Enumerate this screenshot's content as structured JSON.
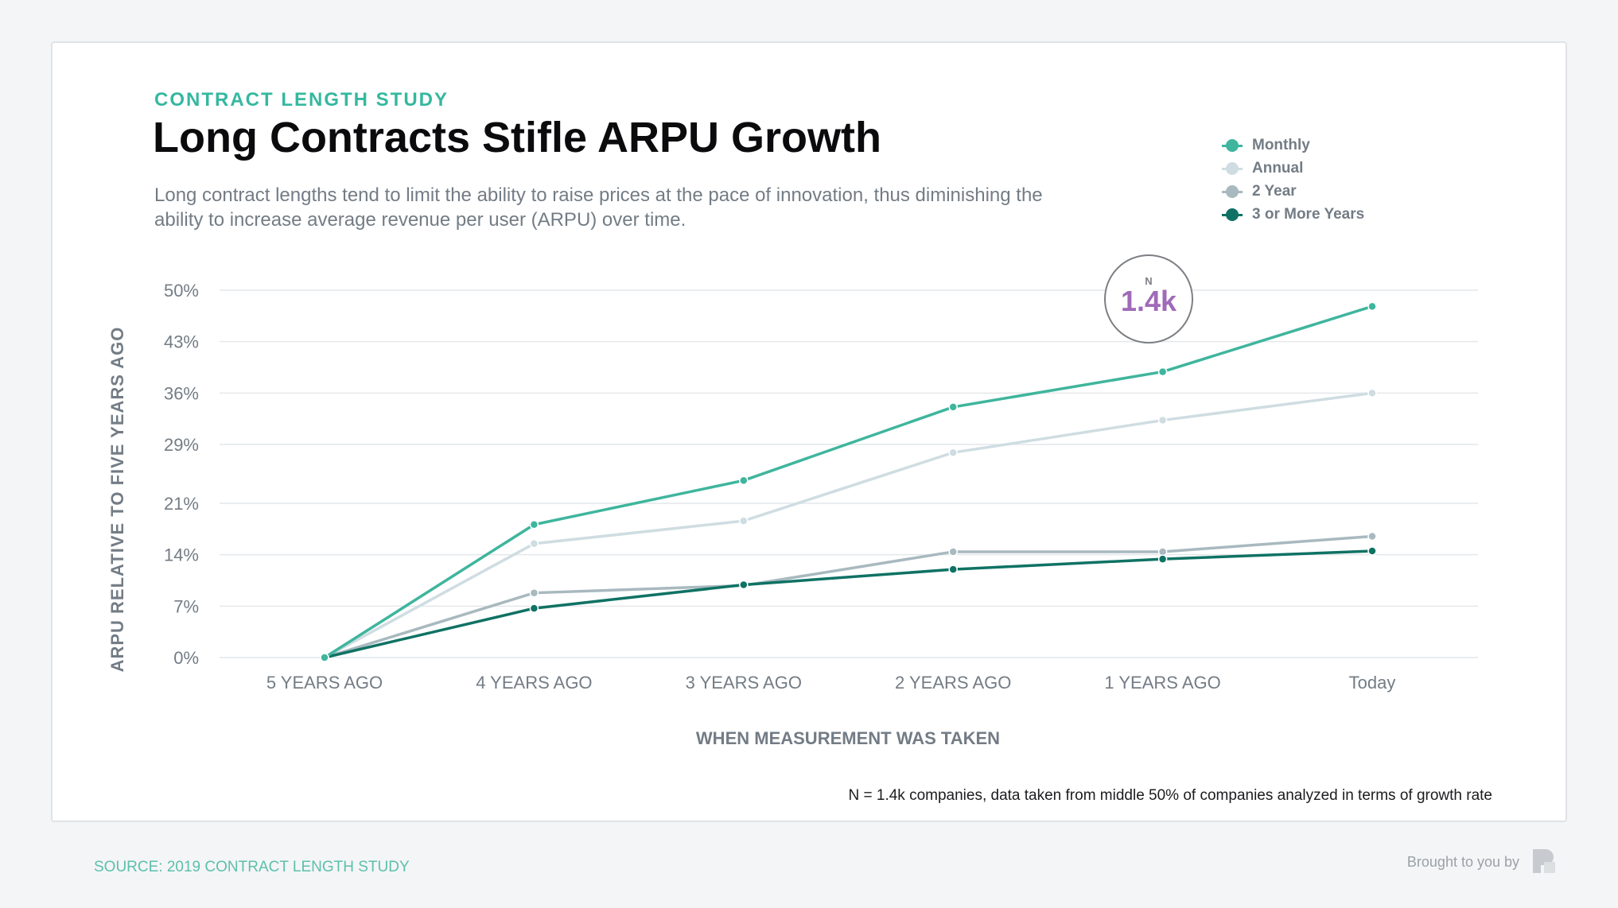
{
  "header": {
    "eyebrow": "CONTRACT LENGTH STUDY",
    "title": "Long Contracts Stifle ARPU Growth",
    "subtitle": "Long contract lengths tend to limit the ability to raise prices at the pace of innovation, thus diminishing the ability to increase average revenue per user (ARPU) over time."
  },
  "badge": {
    "label": "N",
    "value": "1.4k"
  },
  "footer": {
    "note": "N = 1.4k companies, data taken from middle 50% of companies analyzed in terms of growth rate",
    "source": "SOURCE: 2019 CONTRACT LENGTH STUDY",
    "brought_by": "Brought to you by"
  },
  "chart_data": {
    "type": "line",
    "title": "Long Contracts Stifle ARPU Growth",
    "xlabel": "WHEN MEASUREMENT WAS TAKEN",
    "ylabel": "ARPU RELATIVE TO FIVE YEARS AGO",
    "categories": [
      "5 YEARS AGO",
      "4 YEARS AGO",
      "3 YEARS AGO",
      "2 YEARS AGO",
      "1 YEARS AGO",
      "Today"
    ],
    "y_ticks": [
      0,
      7,
      14,
      21,
      29,
      36,
      43,
      50
    ],
    "y_tick_labels": [
      "0%",
      "7%",
      "14%",
      "21%",
      "29%",
      "36%",
      "43%",
      "50%"
    ],
    "ylim": [
      0,
      50
    ],
    "grid": true,
    "legend_position": "top-right",
    "series": [
      {
        "name": "Monthly",
        "color": "#3fb59d",
        "values": [
          0,
          18.1,
          24.1,
          34.1,
          38.9,
          47.8
        ]
      },
      {
        "name": "Annual",
        "color": "#cfdde2",
        "values": [
          0,
          15.5,
          18.6,
          27.9,
          32.3,
          36.0
        ]
      },
      {
        "name": "2 Year",
        "color": "#a8b9bf",
        "values": [
          0,
          8.8,
          9.8,
          14.4,
          14.4,
          16.5
        ]
      },
      {
        "name": "3 or More Years",
        "color": "#0f7264",
        "values": [
          0,
          6.7,
          9.9,
          12.0,
          13.4,
          14.5
        ]
      }
    ]
  }
}
